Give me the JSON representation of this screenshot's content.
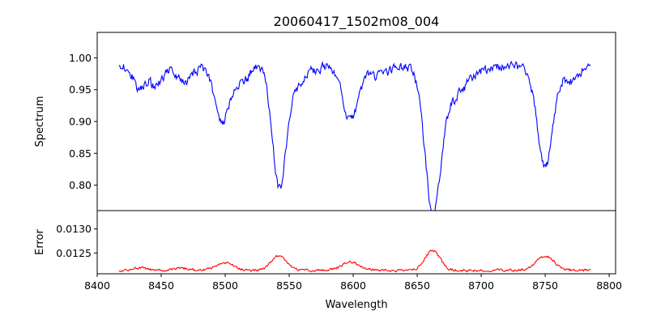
{
  "chart_data": {
    "type": "line",
    "title": "20060417_1502m08_004",
    "xlabel": "Wavelength",
    "x_ticks": [
      8400,
      8450,
      8500,
      8550,
      8600,
      8650,
      8700,
      8750,
      8800
    ],
    "xlim": [
      8400,
      8805
    ],
    "panels": [
      {
        "name": "spectrum",
        "ylabel": "Spectrum",
        "color": "#0000ff",
        "ylim": [
          0.76,
          1.04
        ],
        "y_ticks": [
          0.8,
          0.85,
          0.9,
          0.95,
          1.0
        ],
        "y_tick_labels": [
          "0.80",
          "0.85",
          "0.90",
          "0.95",
          "1.00"
        ],
        "baseline": 0.985,
        "noise": 0.012,
        "start_value": 0.975,
        "features": [
          {
            "center": 8433,
            "depth": 0.035,
            "width": 4
          },
          {
            "center": 8446,
            "depth": 0.03,
            "width": 5
          },
          {
            "center": 8468,
            "depth": 0.025,
            "width": 5
          },
          {
            "center": 8498,
            "depth": 0.085,
            "width": 6
          },
          {
            "center": 8514,
            "depth": 0.025,
            "width": 4
          },
          {
            "center": 8542,
            "depth": 0.165,
            "width": 5
          },
          {
            "center": 8550,
            "depth": 0.04,
            "width": 9
          },
          {
            "center": 8598,
            "depth": 0.085,
            "width": 6
          },
          {
            "center": 8620,
            "depth": 0.015,
            "width": 6
          },
          {
            "center": 8662,
            "depth": 0.2,
            "width": 6
          },
          {
            "center": 8675,
            "depth": 0.05,
            "width": 12
          },
          {
            "center": 8750,
            "depth": 0.155,
            "width": 6
          },
          {
            "center": 8770,
            "depth": 0.02,
            "width": 5
          }
        ],
        "x_range": [
          8417,
          8786
        ]
      },
      {
        "name": "error",
        "ylabel": "Error",
        "color": "#ff0000",
        "ylim": [
          0.01207,
          0.01338
        ],
        "y_ticks": [
          0.0125,
          0.013
        ],
        "y_tick_labels": [
          "0.0125",
          "0.0130"
        ],
        "baseline": 0.01214,
        "noise": 4e-05,
        "features": [
          {
            "center": 8433,
            "depth": 5e-05,
            "width": 6
          },
          {
            "center": 8466,
            "depth": 4e-05,
            "width": 6
          },
          {
            "center": 8500,
            "depth": 0.00016,
            "width": 7
          },
          {
            "center": 8542,
            "depth": 0.0003,
            "width": 6
          },
          {
            "center": 8598,
            "depth": 0.00017,
            "width": 7
          },
          {
            "center": 8662,
            "depth": 0.0004,
            "width": 6
          },
          {
            "center": 8750,
            "depth": 0.0003,
            "width": 7
          }
        ],
        "x_range": [
          8417,
          8786
        ]
      }
    ]
  }
}
